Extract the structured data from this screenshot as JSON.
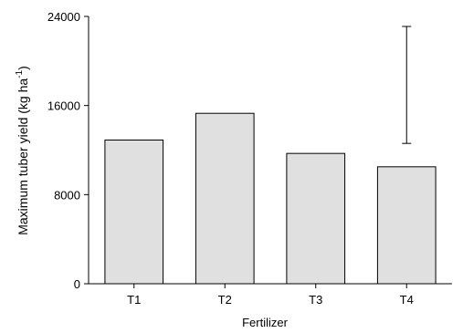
{
  "chart_data": {
    "type": "bar",
    "categories": [
      "T1",
      "T2",
      "T3",
      "T4"
    ],
    "values": [
      12900,
      15300,
      11700,
      10500
    ],
    "error_bar": {
      "category": "T4",
      "low": 12600,
      "high": 23100
    },
    "title": "",
    "xlabel": "Fertilizer",
    "ylabel": "Maximum tuber yield (kg ha",
    "ylabel_superscript": "-1",
    "ylabel_suffix": ")",
    "ylim": [
      0,
      24000
    ],
    "yticks": [
      0,
      8000,
      16000,
      24000
    ],
    "bar_fill": "#e0e0e0",
    "bar_stroke": "#000000",
    "grid": false,
    "legend": "none"
  }
}
